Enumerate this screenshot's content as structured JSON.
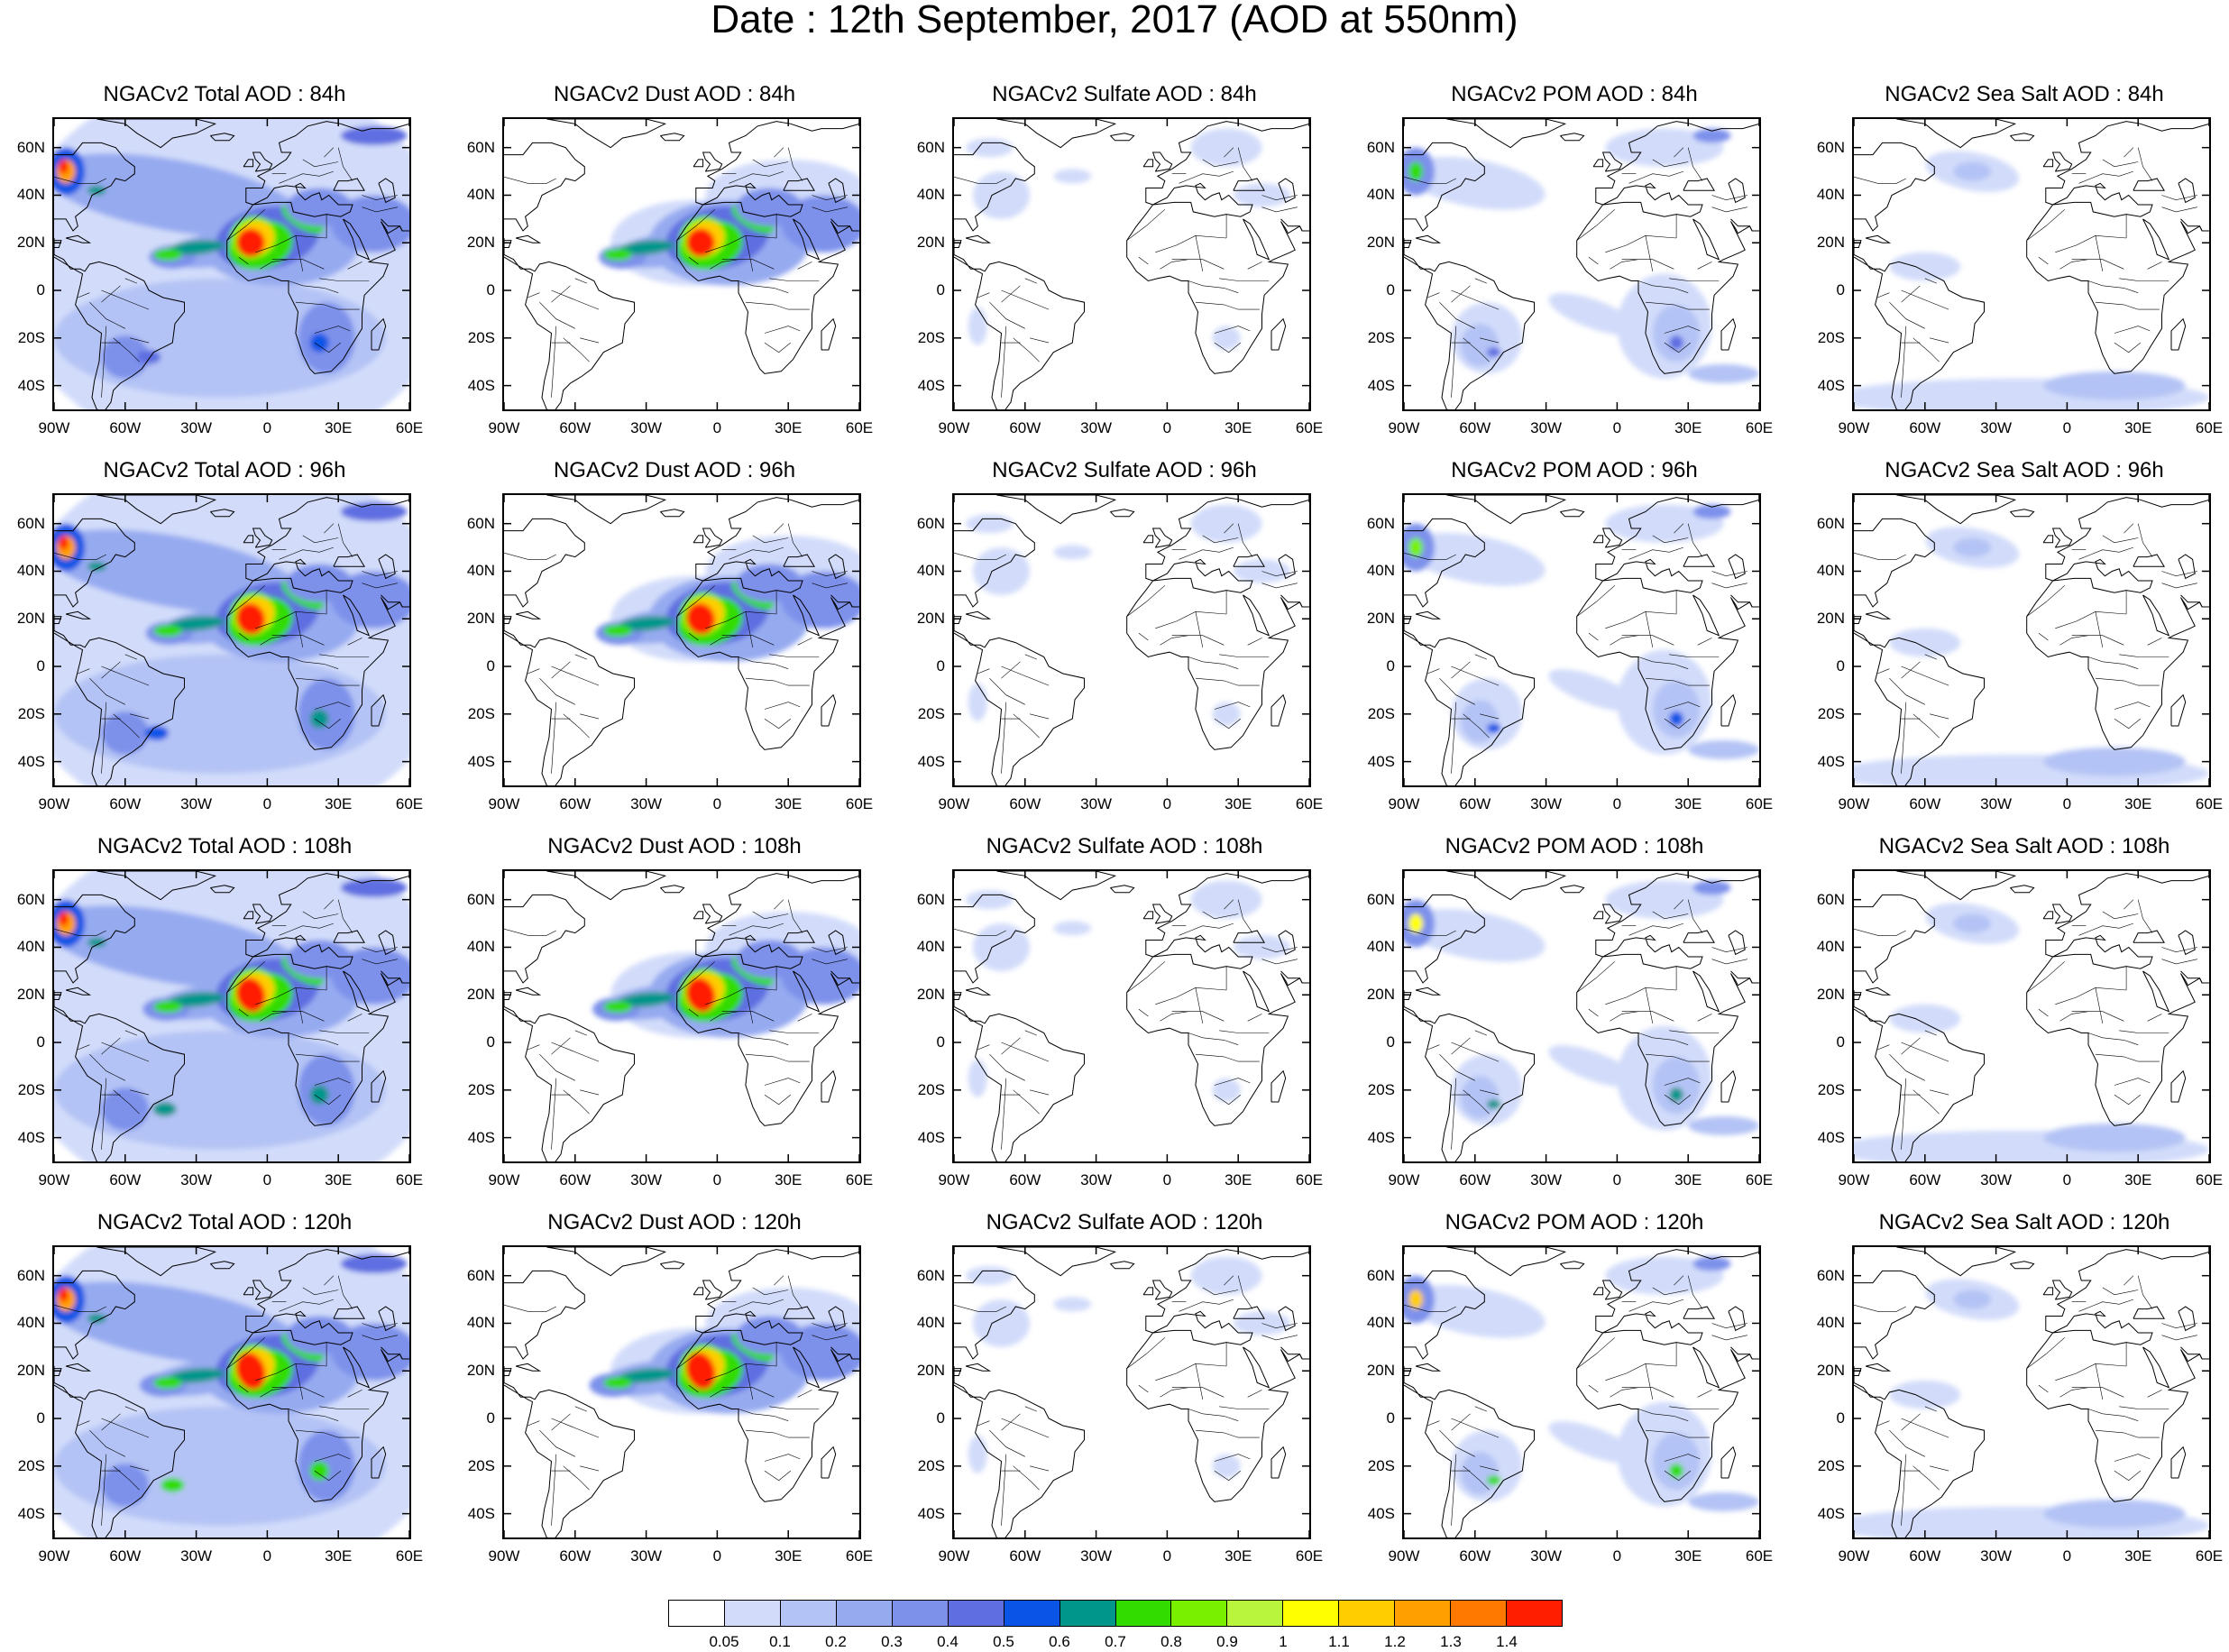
{
  "figure": {
    "title": "Date : 12th September, 2017 (AOD at 550nm)"
  },
  "axes": {
    "lat_ticks": [
      "60N",
      "40N",
      "20N",
      "0",
      "20S",
      "40S"
    ],
    "lat_values": [
      60,
      40,
      20,
      0,
      -20,
      -40
    ],
    "lon_ticks": [
      "90W",
      "60W",
      "30W",
      "0",
      "30E",
      "60E"
    ],
    "lon_values": [
      -90,
      -60,
      -30,
      0,
      30,
      60
    ],
    "lat_range": [
      -50,
      72
    ],
    "lon_range": [
      -90,
      60
    ]
  },
  "panels": [
    {
      "title": "NGACv2 Total AOD : 84h",
      "species": "total",
      "forecast_hour": 84
    },
    {
      "title": "NGACv2 Dust AOD : 84h",
      "species": "dust",
      "forecast_hour": 84
    },
    {
      "title": "NGACv2 Sulfate AOD : 84h",
      "species": "sulfate",
      "forecast_hour": 84
    },
    {
      "title": "NGACv2 POM AOD : 84h",
      "species": "pom",
      "forecast_hour": 84
    },
    {
      "title": "NGACv2 Sea Salt AOD : 84h",
      "species": "seasalt",
      "forecast_hour": 84
    },
    {
      "title": "NGACv2 Total AOD : 96h",
      "species": "total",
      "forecast_hour": 96
    },
    {
      "title": "NGACv2 Dust AOD : 96h",
      "species": "dust",
      "forecast_hour": 96
    },
    {
      "title": "NGACv2 Sulfate AOD : 96h",
      "species": "sulfate",
      "forecast_hour": 96
    },
    {
      "title": "NGACv2 POM AOD : 96h",
      "species": "pom",
      "forecast_hour": 96
    },
    {
      "title": "NGACv2 Sea Salt AOD : 96h",
      "species": "seasalt",
      "forecast_hour": 96
    },
    {
      "title": "NGACv2 Total AOD : 108h",
      "species": "total",
      "forecast_hour": 108
    },
    {
      "title": "NGACv2 Dust AOD : 108h",
      "species": "dust",
      "forecast_hour": 108
    },
    {
      "title": "NGACv2 Sulfate AOD : 108h",
      "species": "sulfate",
      "forecast_hour": 108
    },
    {
      "title": "NGACv2 POM AOD : 108h",
      "species": "pom",
      "forecast_hour": 108
    },
    {
      "title": "NGACv2 Sea Salt AOD : 108h",
      "species": "seasalt",
      "forecast_hour": 108
    },
    {
      "title": "NGACv2 Total AOD : 120h",
      "species": "total",
      "forecast_hour": 120
    },
    {
      "title": "NGACv2 Dust AOD : 120h",
      "species": "dust",
      "forecast_hour": 120
    },
    {
      "title": "NGACv2 Sulfate AOD : 120h",
      "species": "sulfate",
      "forecast_hour": 120
    },
    {
      "title": "NGACv2 POM AOD : 120h",
      "species": "pom",
      "forecast_hour": 120
    },
    {
      "title": "NGACv2 Sea Salt  AOD : 120h",
      "species": "seasalt",
      "forecast_hour": 120
    }
  ],
  "colorbar": {
    "labels": [
      "0.05",
      "0.1",
      "0.2",
      "0.3",
      "0.4",
      "0.5",
      "0.6",
      "0.7",
      "0.8",
      "0.9",
      "1",
      "1.1",
      "1.2",
      "1.3",
      "1.4"
    ],
    "colors": [
      "#ffffff",
      "#d2dcfa",
      "#b4c3f5",
      "#96aaf0",
      "#7d91eb",
      "#5f6ee1",
      "#0a55e6",
      "#00968c",
      "#32dc00",
      "#78f000",
      "#b9f53c",
      "#ffff00",
      "#ffcd00",
      "#ffa000",
      "#ff7800",
      "#ff1e00"
    ]
  }
}
